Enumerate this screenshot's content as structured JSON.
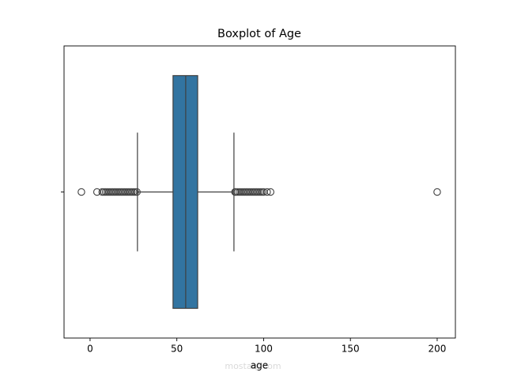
{
  "chart_data": {
    "type": "boxplot",
    "orientation": "horizontal",
    "title": "Boxplot of Age",
    "x_label": "age",
    "xlim": [
      -15,
      210.5
    ],
    "xticks": [
      0,
      50,
      100,
      150,
      200
    ],
    "color": "#3274a1",
    "boxes": [
      {
        "whisker_low": 27.3,
        "q1": 47.8,
        "median": 55.1,
        "q3": 62.0,
        "whisker_high": 82.9,
        "outliers": [
          -5,
          4,
          7,
          8,
          9,
          10,
          11,
          12,
          13,
          14,
          15,
          16,
          17,
          18,
          19,
          20,
          21,
          22,
          23,
          24,
          25,
          26,
          27,
          83.5,
          84,
          85,
          86,
          87,
          88,
          89,
          90,
          91,
          92,
          93,
          94,
          95,
          96,
          97,
          98,
          99,
          100,
          102,
          104,
          200
        ]
      }
    ],
    "watermark": "mostaql.com"
  }
}
